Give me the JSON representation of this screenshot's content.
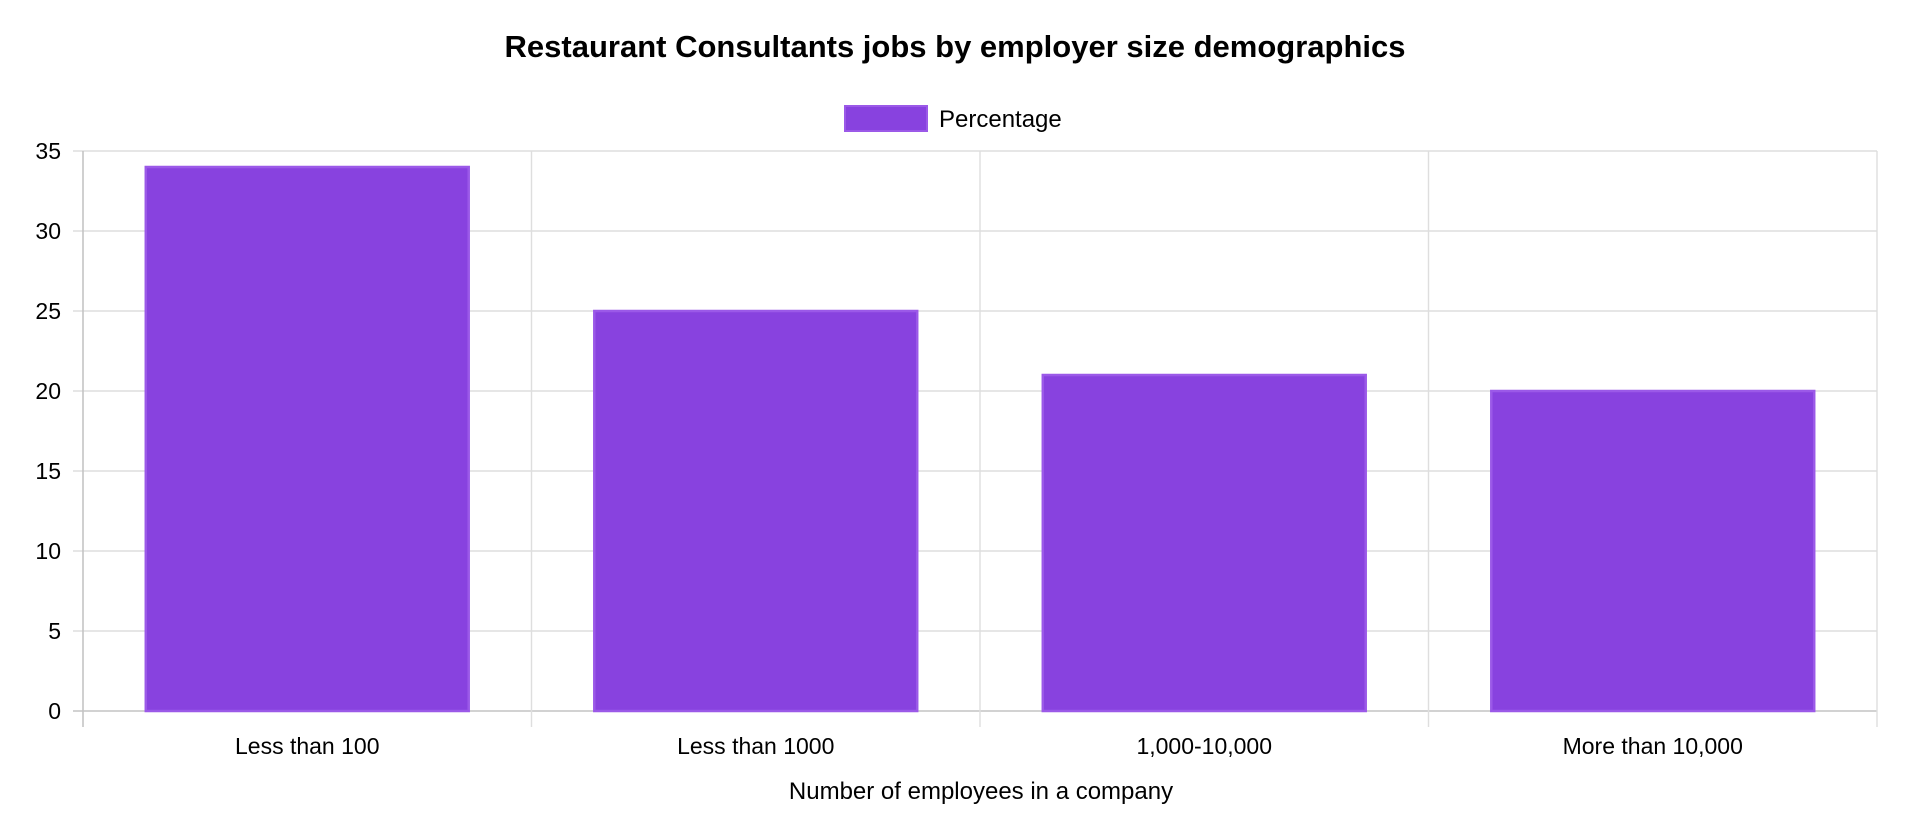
{
  "chart_data": {
    "type": "bar",
    "title": "Restaurant Consultants jobs by employer size demographics",
    "xlabel": "Number of employees in a company",
    "ylabel": "",
    "categories": [
      "Less than 100",
      "Less than 1000",
      "1,000-10,000",
      "More than 10,000"
    ],
    "series": [
      {
        "name": "Percentage",
        "values": [
          34,
          25,
          21,
          20
        ],
        "color": "#8842df",
        "border_color": "#9b59e8"
      }
    ],
    "ylim": [
      0,
      35
    ],
    "yticks": [
      0,
      5,
      10,
      15,
      20,
      25,
      30,
      35
    ],
    "grid": true,
    "legend_position": "top-center"
  }
}
